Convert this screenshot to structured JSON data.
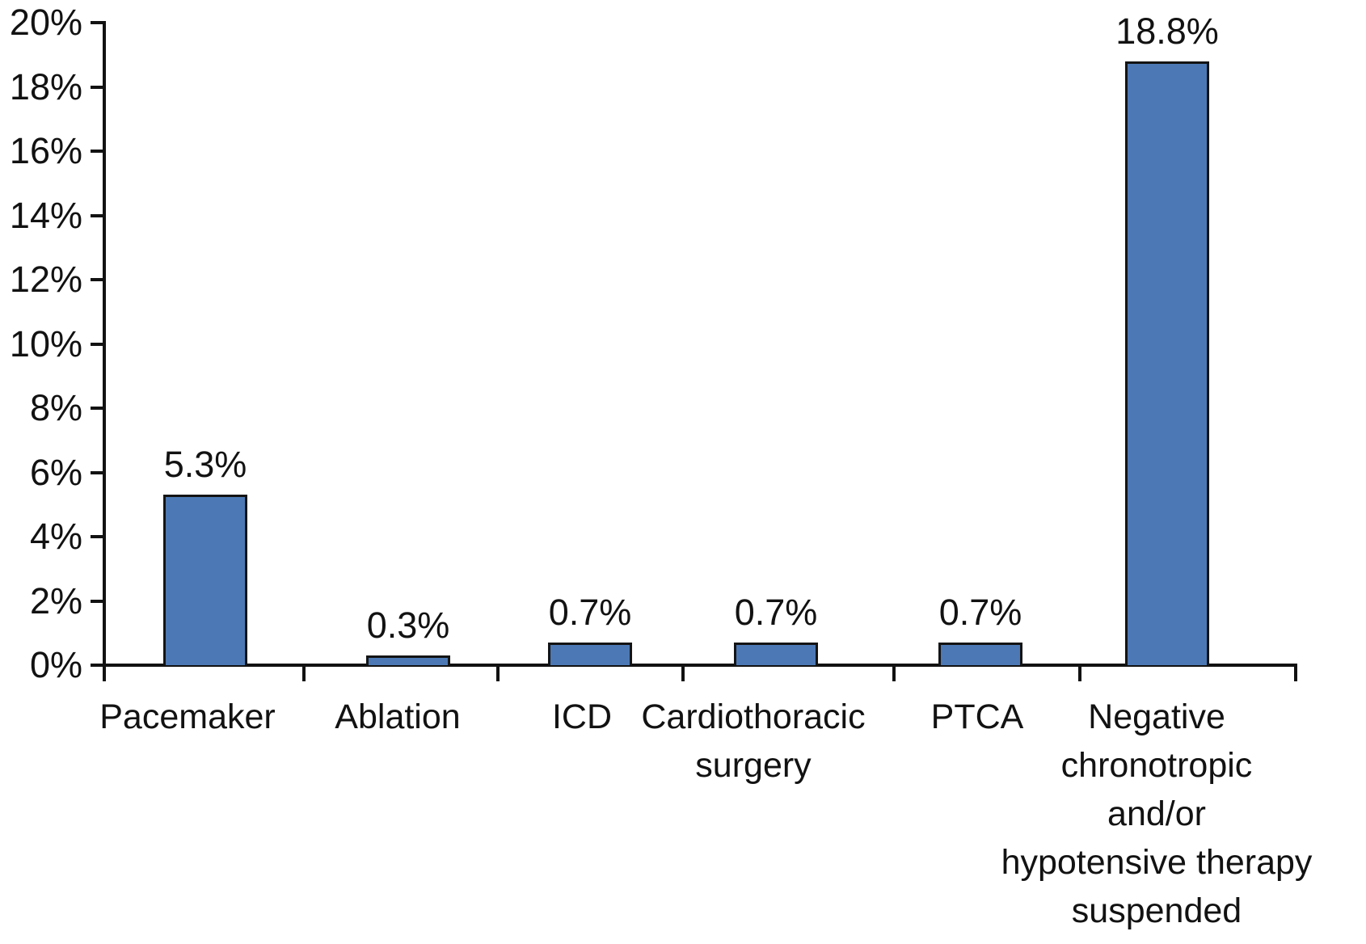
{
  "chart_data": {
    "type": "bar",
    "title": "",
    "xlabel": "",
    "ylabel": "",
    "categories": [
      "Pacemaker",
      "Ablation",
      "ICD",
      "Cardiothoracic surgery",
      "PTCA",
      "Negative chronotropic and/or hypotensive therapy suspended"
    ],
    "category_label_lines": [
      [
        "Pacemaker"
      ],
      [
        "Ablation"
      ],
      [
        "ICD"
      ],
      [
        "Cardiothoracic",
        "surgery"
      ],
      [
        "PTCA"
      ],
      [
        "Negative",
        "chronotropic",
        "and/or",
        "hypotensive therapy",
        "suspended"
      ]
    ],
    "values": [
      5.3,
      0.3,
      0.7,
      0.7,
      0.7,
      18.8
    ],
    "value_labels": [
      "5.3%",
      "0.3%",
      "0.7%",
      "0.7%",
      "0.7%",
      "18.8%"
    ],
    "ylim": [
      0,
      20
    ],
    "ytick_step": 2,
    "ytick_labels": [
      "0%",
      "2%",
      "4%",
      "6%",
      "8%",
      "10%",
      "12%",
      "14%",
      "16%",
      "18%",
      "20%"
    ],
    "grid": false,
    "legend": false,
    "colors": {
      "bar_fill": "#4C79B5",
      "bar_border": "#141414",
      "axis": "#121212",
      "text": "#121212",
      "background": "#FFFFFF"
    }
  }
}
